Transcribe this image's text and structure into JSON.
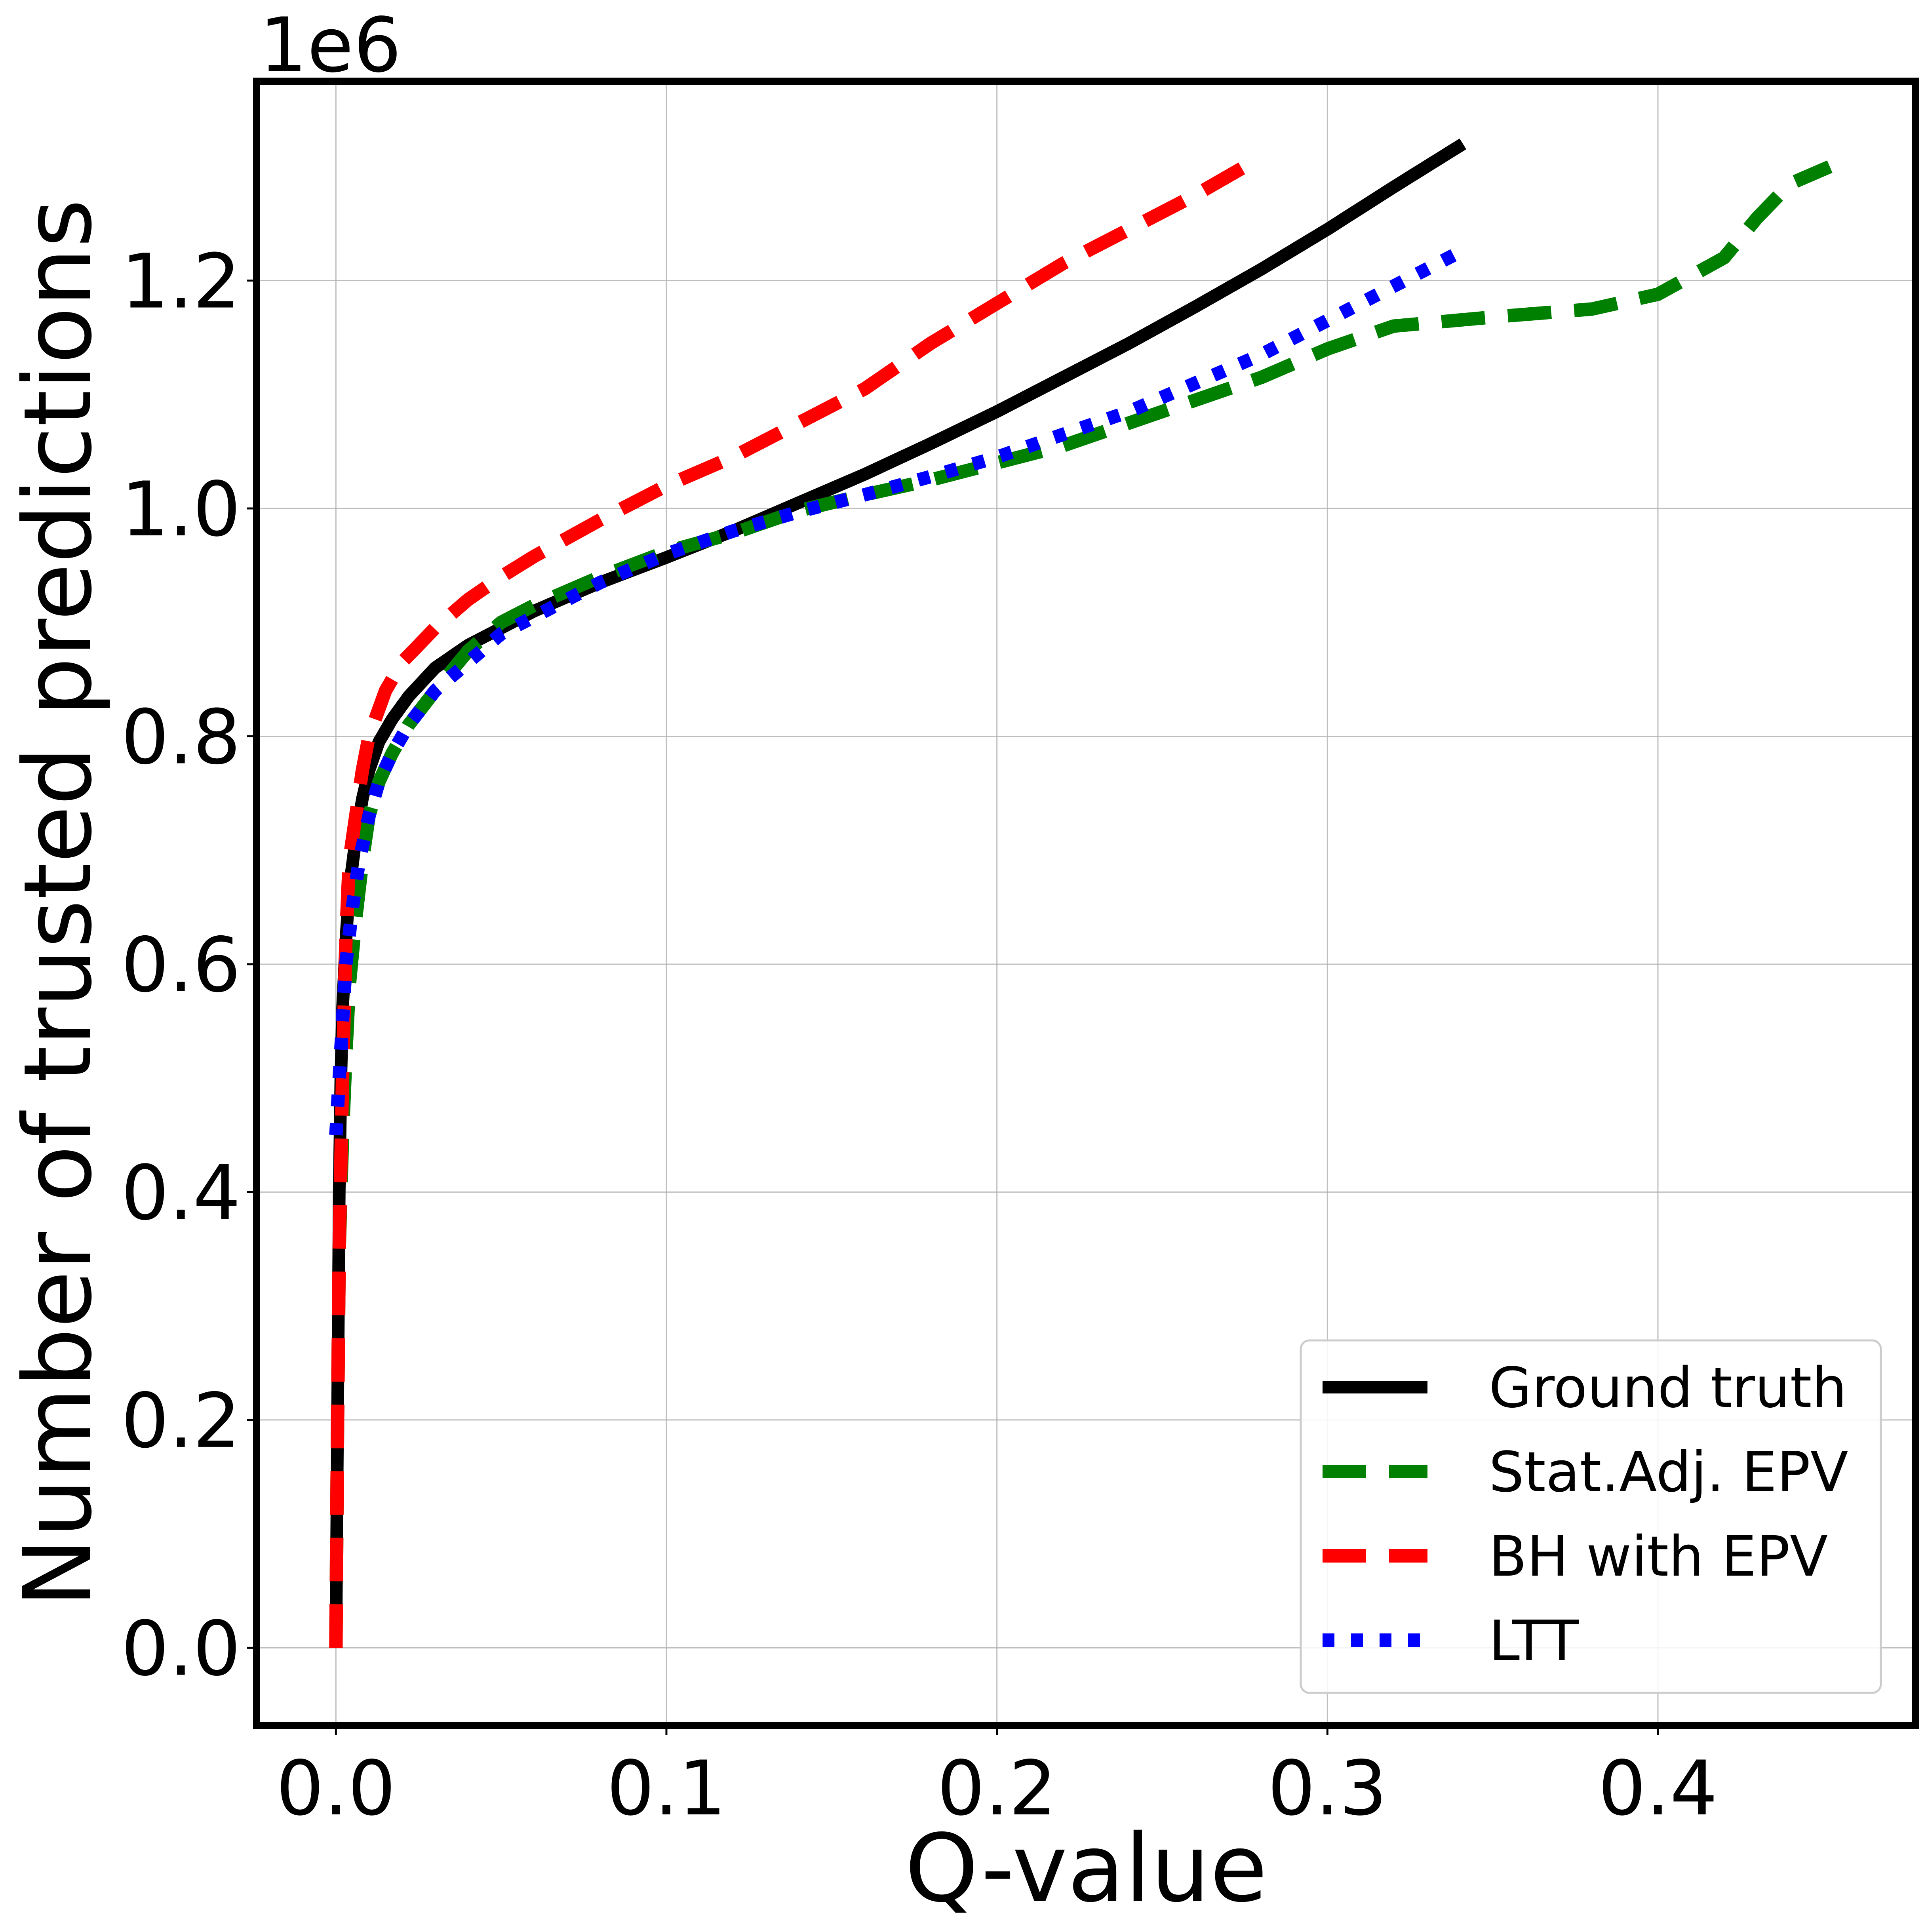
{
  "chart_data": {
    "type": "line",
    "title": "",
    "xlabel": "Q-value",
    "ylabel": "Number of trusted predictions",
    "y_offset_label": "1e6",
    "xlim": [
      -0.024,
      0.478
    ],
    "ylim": [
      -0.068,
      1.375
    ],
    "xticks": [
      0.0,
      0.1,
      0.2,
      0.3,
      0.4
    ],
    "xtick_labels": [
      "0.0",
      "0.1",
      "0.2",
      "0.3",
      "0.4"
    ],
    "yticks": [
      0.0,
      0.2,
      0.4,
      0.6,
      0.8,
      1.0,
      1.2
    ],
    "ytick_labels": [
      "0.0",
      "0.2",
      "0.4",
      "0.6",
      "0.8",
      "1.0",
      "1.2"
    ],
    "grid": true,
    "legend_position": "lower-right",
    "series": [
      {
        "name": "Ground truth",
        "color": "#000000",
        "style": "solid",
        "points": [
          [
            0.0,
            0.0
          ],
          [
            0.0005,
            0.2
          ],
          [
            0.001,
            0.4
          ],
          [
            0.0015,
            0.5
          ],
          [
            0.002,
            0.56
          ],
          [
            0.003,
            0.62
          ],
          [
            0.004,
            0.665
          ],
          [
            0.006,
            0.71
          ],
          [
            0.008,
            0.745
          ],
          [
            0.01,
            0.77
          ],
          [
            0.013,
            0.795
          ],
          [
            0.017,
            0.815
          ],
          [
            0.022,
            0.835
          ],
          [
            0.03,
            0.86
          ],
          [
            0.04,
            0.88
          ],
          [
            0.05,
            0.895
          ],
          [
            0.06,
            0.91
          ],
          [
            0.08,
            0.935
          ],
          [
            0.1,
            0.957
          ],
          [
            0.12,
            0.98
          ],
          [
            0.14,
            1.005
          ],
          [
            0.16,
            1.03
          ],
          [
            0.18,
            1.057
          ],
          [
            0.2,
            1.085
          ],
          [
            0.22,
            1.115
          ],
          [
            0.24,
            1.145
          ],
          [
            0.26,
            1.177
          ],
          [
            0.28,
            1.21
          ],
          [
            0.3,
            1.245
          ],
          [
            0.32,
            1.282
          ],
          [
            0.341,
            1.32
          ]
        ]
      },
      {
        "name": "Stat.Adj. EPV",
        "color": "#008000",
        "style": "dashed",
        "points": [
          [
            0.0,
            0.0
          ],
          [
            0.0005,
            0.2
          ],
          [
            0.001,
            0.35
          ],
          [
            0.002,
            0.45
          ],
          [
            0.003,
            0.52
          ],
          [
            0.004,
            0.58
          ],
          [
            0.006,
            0.64
          ],
          [
            0.008,
            0.69
          ],
          [
            0.01,
            0.73
          ],
          [
            0.013,
            0.76
          ],
          [
            0.017,
            0.785
          ],
          [
            0.022,
            0.81
          ],
          [
            0.03,
            0.84
          ],
          [
            0.04,
            0.875
          ],
          [
            0.05,
            0.9
          ],
          [
            0.06,
            0.915
          ],
          [
            0.08,
            0.94
          ],
          [
            0.1,
            0.962
          ],
          [
            0.12,
            0.978
          ],
          [
            0.14,
            0.998
          ],
          [
            0.16,
            1.012
          ],
          [
            0.18,
            1.025
          ],
          [
            0.2,
            1.04
          ],
          [
            0.22,
            1.055
          ],
          [
            0.24,
            1.075
          ],
          [
            0.26,
            1.095
          ],
          [
            0.28,
            1.115
          ],
          [
            0.3,
            1.14
          ],
          [
            0.32,
            1.16
          ],
          [
            0.35,
            1.168
          ],
          [
            0.38,
            1.175
          ],
          [
            0.4,
            1.188
          ],
          [
            0.42,
            1.22
          ],
          [
            0.43,
            1.255
          ],
          [
            0.44,
            1.285
          ],
          [
            0.452,
            1.3
          ]
        ]
      },
      {
        "name": "BH with EPV",
        "color": "#ff0000",
        "style": "dashed",
        "points": [
          [
            0.0,
            0.0
          ],
          [
            0.0005,
            0.2
          ],
          [
            0.001,
            0.35
          ],
          [
            0.002,
            0.5
          ],
          [
            0.003,
            0.62
          ],
          [
            0.004,
            0.69
          ],
          [
            0.006,
            0.73
          ],
          [
            0.008,
            0.77
          ],
          [
            0.01,
            0.8
          ],
          [
            0.015,
            0.84
          ],
          [
            0.02,
            0.865
          ],
          [
            0.03,
            0.895
          ],
          [
            0.04,
            0.92
          ],
          [
            0.05,
            0.94
          ],
          [
            0.06,
            0.958
          ],
          [
            0.08,
            0.99
          ],
          [
            0.1,
            1.02
          ],
          [
            0.12,
            1.045
          ],
          [
            0.14,
            1.075
          ],
          [
            0.16,
            1.105
          ],
          [
            0.18,
            1.145
          ],
          [
            0.2,
            1.18
          ],
          [
            0.22,
            1.215
          ],
          [
            0.24,
            1.245
          ],
          [
            0.26,
            1.275
          ],
          [
            0.278,
            1.305
          ]
        ]
      },
      {
        "name": "LTT",
        "color": "#0000ff",
        "style": "dotted",
        "points": [
          [
            0.0,
            0.45
          ],
          [
            0.001,
            0.5
          ],
          [
            0.002,
            0.55
          ],
          [
            0.003,
            0.6
          ],
          [
            0.005,
            0.65
          ],
          [
            0.007,
            0.69
          ],
          [
            0.01,
            0.73
          ],
          [
            0.013,
            0.76
          ],
          [
            0.017,
            0.785
          ],
          [
            0.022,
            0.81
          ],
          [
            0.03,
            0.84
          ],
          [
            0.04,
            0.865
          ],
          [
            0.05,
            0.89
          ],
          [
            0.06,
            0.905
          ],
          [
            0.08,
            0.935
          ],
          [
            0.1,
            0.96
          ],
          [
            0.12,
            0.98
          ],
          [
            0.14,
            0.997
          ],
          [
            0.16,
            1.012
          ],
          [
            0.18,
            1.028
          ],
          [
            0.2,
            1.045
          ],
          [
            0.22,
            1.065
          ],
          [
            0.24,
            1.085
          ],
          [
            0.26,
            1.11
          ],
          [
            0.28,
            1.135
          ],
          [
            0.3,
            1.165
          ],
          [
            0.32,
            1.195
          ],
          [
            0.34,
            1.225
          ]
        ]
      }
    ]
  }
}
